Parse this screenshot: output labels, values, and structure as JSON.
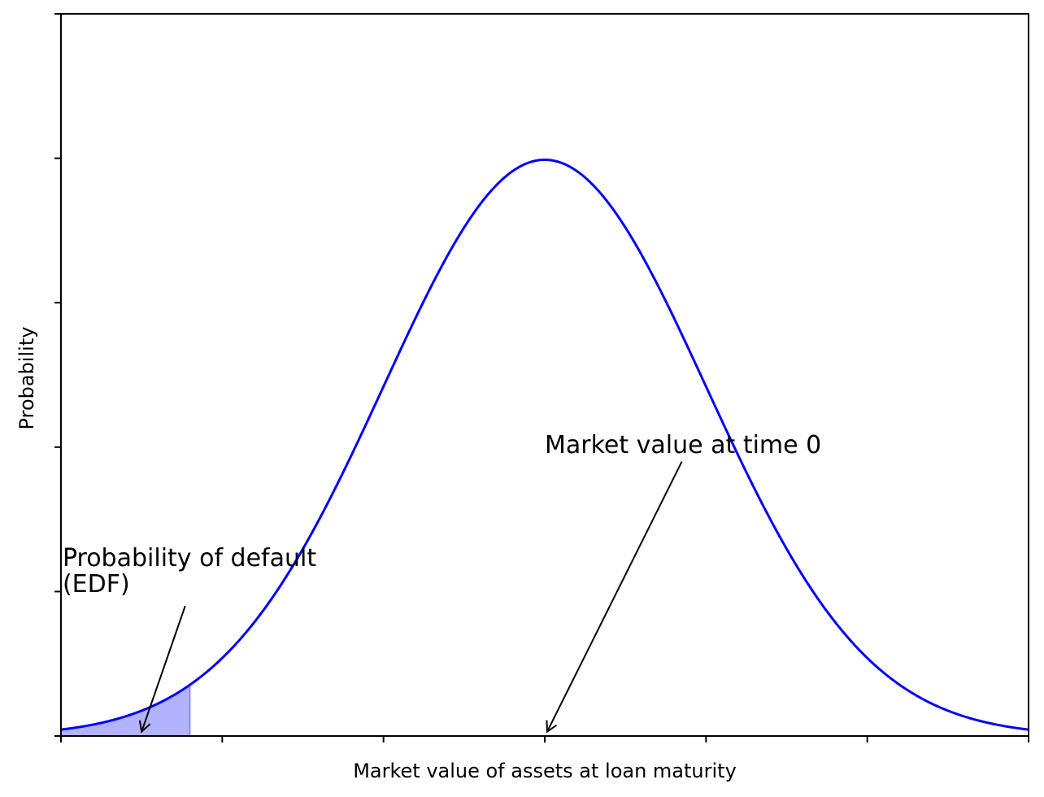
{
  "chart_data": {
    "type": "line",
    "title": "",
    "xlabel": "Market value of assets at loan maturity",
    "ylabel": "Probability",
    "curve": {
      "distribution": "normal pdf",
      "mean": 0,
      "std": 1,
      "color": "#0000ff"
    },
    "xlim": [
      -3,
      3
    ],
    "ylim": [
      0,
      0.5
    ],
    "xticks": [
      -3,
      -2,
      -1,
      0,
      1,
      2,
      3
    ],
    "yticks": [
      0,
      0.1,
      0.2,
      0.3,
      0.4,
      0.5
    ],
    "tick_labels_shown": false,
    "grid": false,
    "shaded_region": {
      "from": -3,
      "to": -2.2,
      "color": "#0000ff",
      "alpha": 0.3
    },
    "annotations": [
      {
        "text": "Probability of default\n(EDF)",
        "text_at": [
          -2.99,
          0.1
        ],
        "arrow_from": [
          -2.23,
          0.09
        ],
        "arrow_to": [
          -2.5,
          0.003
        ]
      },
      {
        "text": "Market value at time 0",
        "text_at": [
          0,
          0.2
        ],
        "arrow_from": [
          0.85,
          0.19
        ],
        "arrow_to": [
          0.015,
          0.003
        ]
      }
    ]
  }
}
